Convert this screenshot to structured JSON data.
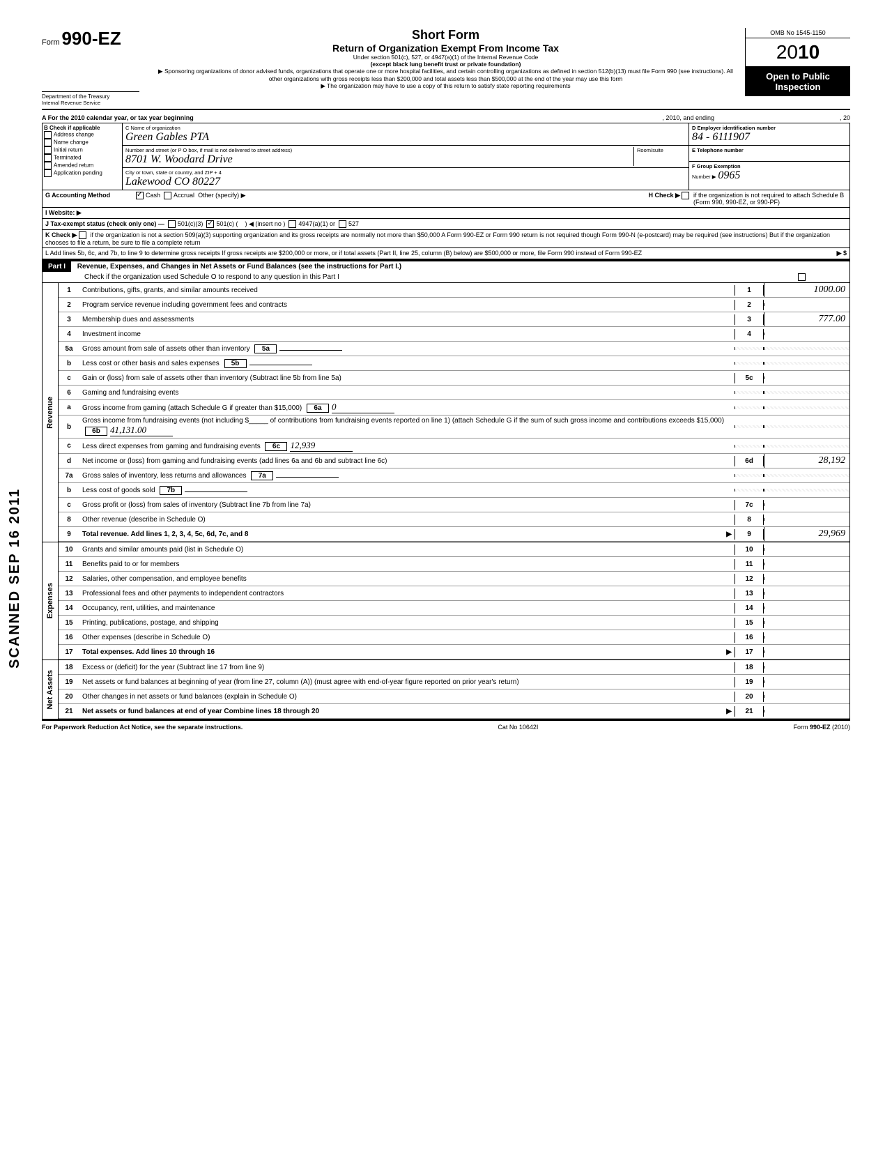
{
  "header": {
    "form_prefix": "Form",
    "form_number": "990-EZ",
    "omb": "OMB No 1545-1150",
    "year_prefix": "20",
    "year_bold": "10",
    "title": "Short Form",
    "subtitle": "Return of Organization Exempt From Income Tax",
    "under": "Under section 501(c), 527, or 4947(a)(1) of the Internal Revenue Code",
    "except": "(except black lung benefit trust or private foundation)",
    "sponsor": "▶ Sponsoring organizations of donor advised funds, organizations that operate one or more hospital facilities, and certain controlling organizations as defined in section 512(b)(13) must file Form 990 (see instructions). All other organizations with gross receipts less than $200,000 and total assets less than $500,000 at the end of the year may use this form",
    "copy": "▶ The organization may have to use a copy of this return to satisfy state reporting requirements",
    "open": "Open to Public Inspection",
    "dept1": "Department of the Treasury",
    "dept2": "Internal Revenue Service"
  },
  "section_a": {
    "a_label": "A For the 2010 calendar year, or tax year beginning",
    "a_mid": ", 2010, and ending",
    "a_end": ", 20",
    "b_label": "B Check if applicable",
    "b_items": [
      "Address change",
      "Name change",
      "Initial return",
      "Terminated",
      "Amended return",
      "Application pending"
    ],
    "c_label": "C Name of organization",
    "c_name": "Green Gables PTA",
    "c_street_label": "Number and street (or P O box, if mail is not delivered to street address)",
    "c_street": "8701 W. Woodard Drive",
    "c_room_label": "Room/suite",
    "c_city_label": "City or town, state or country, and ZIP + 4",
    "c_city": "Lakewood CO     80227",
    "d_label": "D Employer identification number",
    "d_val": "84 - 6111907",
    "e_label": "E Telephone number",
    "f_label": "F Group Exemption",
    "f_num": "Number ▶",
    "f_val": "0965"
  },
  "g_row": {
    "g": "G Accounting Method",
    "cash": "Cash",
    "accrual": "Accrual",
    "other": "Other (specify) ▶",
    "h": "H Check ▶",
    "h_text": "if the organization is not required to attach Schedule B (Form 990, 990-EZ, or 990-PF)"
  },
  "i_row": {
    "i": "I  Website: ▶"
  },
  "j_row": {
    "j": "J Tax-exempt status (check only one) —",
    "j1": "501(c)(3)",
    "j2": "501(c) (",
    "j2b": ") ◀ (insert no )",
    "j3": "4947(a)(1) or",
    "j4": "527"
  },
  "k_row": {
    "k": "K Check ▶",
    "k_text": "if the organization is not a section 509(a)(3) supporting organization and its gross receipts are normally not more than $50,000   A Form 990-EZ or Form 990 return is not required though Form 990-N (e-postcard) may be required (see instructions)  But if the organization chooses to file a return, be sure to file a complete return"
  },
  "l_row": {
    "l": "L Add lines 5b, 6c, and 7b, to line 9 to determine gross receipts  If gross receipts are $200,000 or more, or if total assets (Part II, line 25, column (B) below) are $500,000 or more, file Form 990 instead of Form 990-EZ",
    "arrow": "▶  $"
  },
  "part1": {
    "label": "Part I",
    "title": "Revenue, Expenses, and Changes in Net Assets or Fund Balances (see the instructions for Part I.)",
    "check": "Check if the organization used Schedule O to respond to any question in this Part I"
  },
  "revenue_label": "Revenue",
  "expenses_label": "Expenses",
  "netassets_label": "Net Assets",
  "lines": {
    "1": {
      "d": "Contributions, gifts, grants, and similar amounts received",
      "v": "1000.00"
    },
    "2": {
      "d": "Program service revenue including government fees and contracts",
      "v": ""
    },
    "3": {
      "d": "Membership dues and assessments",
      "v": "777.00"
    },
    "4": {
      "d": "Investment income",
      "v": ""
    },
    "5a": {
      "d": "Gross amount from sale of assets other than inventory",
      "sb": "5a"
    },
    "5b": {
      "d": "Less  cost or other basis and sales expenses",
      "sb": "5b"
    },
    "5c": {
      "d": "Gain or (loss) from sale of assets other than inventory (Subtract line 5b from line 5a)",
      "v": ""
    },
    "6": {
      "d": "Gaming and fundraising events"
    },
    "6a": {
      "d": "Gross income from gaming (attach Schedule G if greater than $15,000)",
      "sb": "6a",
      "sv": "0"
    },
    "6b": {
      "d": "Gross income from fundraising events (not including $_____ of contributions from fundraising events reported on line 1) (attach Schedule G if the sum of such gross income and contributions exceeds $15,000)",
      "sb": "6b",
      "sv": "41,131.00"
    },
    "6c": {
      "d": "Less  direct expenses from gaming and fundraising events",
      "sb": "6c",
      "sv": "12,939"
    },
    "6d": {
      "d": "Net income or (loss) from gaming and fundraising events (add lines 6a and 6b and subtract line 6c)",
      "v": "28,192"
    },
    "7a": {
      "d": "Gross sales of inventory, less returns and allowances",
      "sb": "7a"
    },
    "7b": {
      "d": "Less  cost of goods sold",
      "sb": "7b"
    },
    "7c": {
      "d": "Gross profit or (loss) from sales of inventory (Subtract line 7b from line 7a)",
      "v": ""
    },
    "8": {
      "d": "Other revenue (describe in Schedule O)",
      "v": ""
    },
    "9": {
      "d": "Total revenue. Add lines 1, 2, 3, 4, 5c, 6d, 7c, and 8",
      "v": "29,969",
      "bold": true
    },
    "10": {
      "d": "Grants and similar amounts paid (list in Schedule O)",
      "v": ""
    },
    "11": {
      "d": "Benefits paid to or for members",
      "v": ""
    },
    "12": {
      "d": "Salaries, other compensation, and employee benefits",
      "v": ""
    },
    "13": {
      "d": "Professional fees and other payments to independent contractors",
      "v": ""
    },
    "14": {
      "d": "Occupancy, rent, utilities, and maintenance",
      "v": ""
    },
    "15": {
      "d": "Printing, publications, postage, and shipping",
      "v": ""
    },
    "16": {
      "d": "Other expenses (describe in Schedule O)",
      "v": ""
    },
    "17": {
      "d": "Total expenses. Add lines 10 through 16",
      "v": "",
      "bold": true
    },
    "18": {
      "d": "Excess or (deficit) for the year (Subtract line 17 from line 9)",
      "v": ""
    },
    "19": {
      "d": "Net assets or fund balances at beginning of year (from line 27, column (A)) (must agree with end-of-year figure reported on prior year's return)",
      "v": ""
    },
    "20": {
      "d": "Other changes in net assets or fund balances (explain in Schedule O)",
      "v": ""
    },
    "21": {
      "d": "Net assets or fund balances at end of year  Combine lines 18 through 20",
      "v": "",
      "bold": true
    }
  },
  "footer": {
    "left": "For Paperwork Reduction Act Notice, see the separate instructions.",
    "mid": "Cat No 10642I",
    "right": "Form 990-EZ (2010)"
  },
  "stamp": "SCANNED SEP 16 2011",
  "colors": {
    "black": "#000000",
    "white": "#ffffff",
    "gray_line": "#999999"
  }
}
